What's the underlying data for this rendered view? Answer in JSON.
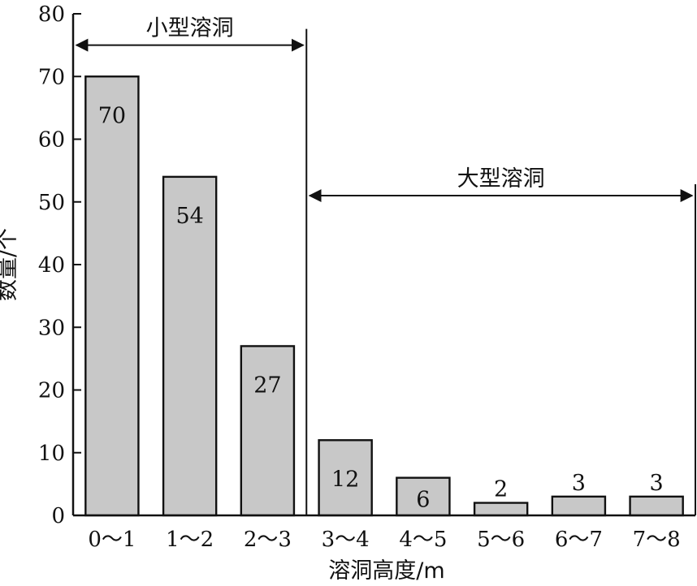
{
  "chart_data": {
    "type": "bar",
    "categories": [
      "0～1",
      "1～2",
      "2～3",
      "3～4",
      "4～5",
      "5～6",
      "6～7",
      "7～8"
    ],
    "values": [
      70,
      54,
      27,
      12,
      6,
      2,
      3,
      3
    ],
    "data_labels": [
      "70",
      "54",
      "27",
      "12",
      "6",
      "2",
      "3",
      "3"
    ],
    "xlabel": "溶洞高度/m",
    "ylabel": "数量/个",
    "ylim": [
      0,
      80
    ],
    "yticks": [
      0,
      10,
      20,
      30,
      40,
      50,
      60,
      70,
      80
    ],
    "ytick_labels": [
      "0",
      "10",
      "20",
      "30",
      "40",
      "50",
      "60",
      "70",
      "80"
    ],
    "grid": false,
    "annotations": [
      {
        "label": "小型溶洞",
        "range": [
          0,
          3
        ],
        "y": 75
      },
      {
        "label": "大型溶洞",
        "range": [
          3,
          8
        ],
        "y": 51
      }
    ],
    "colors": {
      "bar_fill": "#c8c8c8",
      "bar_stroke": "#111111",
      "axis": "#111111",
      "text": "#111111"
    }
  }
}
